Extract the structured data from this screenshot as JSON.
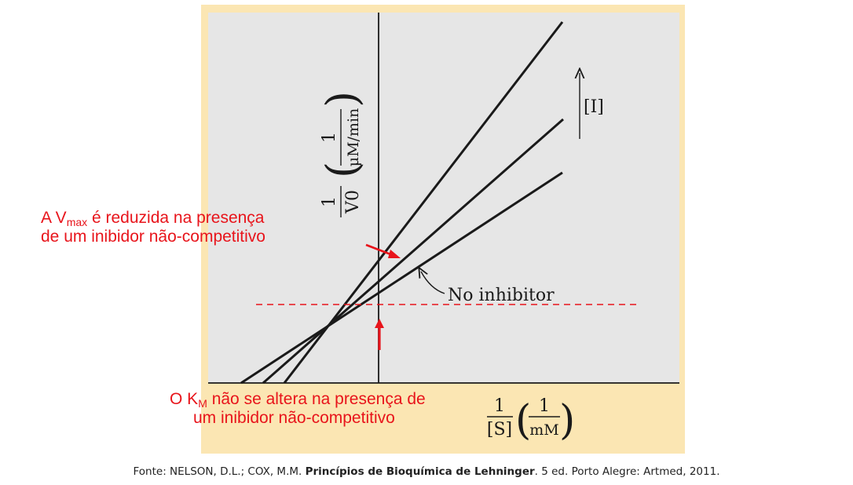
{
  "diagram": {
    "y_axis_label_numerator": "1",
    "y_axis_label_denominator": "V0",
    "y_axis_label_unit_numerator": "1",
    "y_axis_label_unit_denominator": "μM/min",
    "x_axis_label_numerator": "1",
    "x_axis_label_denominator": "[S]",
    "x_axis_label_unit_numerator": "1",
    "x_axis_label_unit_denominator": "mM",
    "inhibitor_arrow_label": "[I]",
    "no_inhibitor_label": "No inhibitor",
    "colors": {
      "panel_border": "#fbe6b3",
      "plot_background": "#e6e6e6",
      "line": "#1a1a1a",
      "annotation": "#e8141b"
    }
  },
  "annotations": {
    "vmax_prefix": "A V",
    "vmax_sub": "max",
    "vmax_rest": " é reduzida na presença",
    "vmax_line2": "de um inibidor não-competitivo",
    "km_prefix": "O K",
    "km_sub": "M",
    "km_rest": " não se altera na presença de",
    "km_line2": "um inibidor  não-competitivo"
  },
  "caption": {
    "prefix": "Fonte: NELSON, D.L.; COX, M.M. ",
    "title": "Princípios de Bioquímica de Lehninger",
    "suffix": ". 5 ed. Porto Alegre: Artmed, 2011."
  }
}
